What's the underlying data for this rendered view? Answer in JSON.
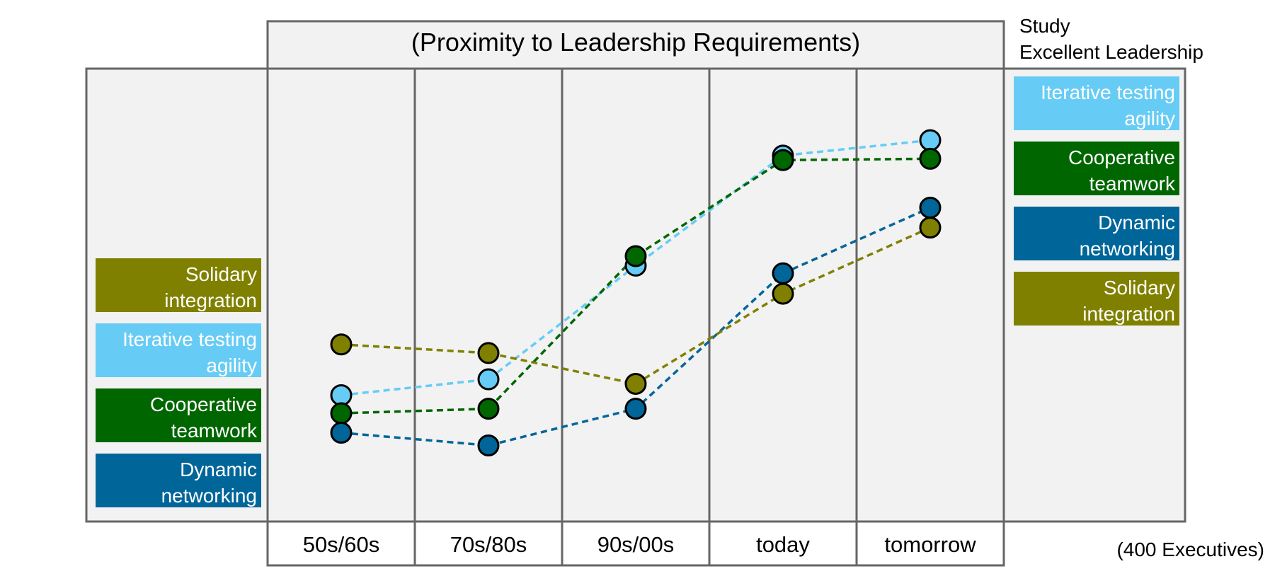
{
  "chart_data": {
    "type": "line",
    "title": "(Proximity to Leadership Requirements)",
    "study_label": [
      "Study",
      "Excellent Leadership"
    ],
    "footnote": "(400 Executives)",
    "categories": [
      "50s/60s",
      "70s/80s",
      "90s/00s",
      "today",
      "tomorrow"
    ],
    "y_scale": "relative position (0 = low, 100 = high); no y-axis printed",
    "ylim": [
      0,
      100
    ],
    "grid": "vertical separators between categories",
    "series": [
      {
        "name": "Iterative testing agility",
        "label_lines": [
          "Iterative testing",
          "agility"
        ],
        "color": "#66ccf5",
        "values": [
          27.9,
          31.4,
          56.5,
          80.8,
          84.2
        ],
        "start_rank": 2,
        "end_rank": 1
      },
      {
        "name": "Cooperative teamwork",
        "label_lines": [
          "Cooperative",
          "teamwork"
        ],
        "color": "#006600",
        "values": [
          23.9,
          24.9,
          58.6,
          79.8,
          80.1
        ],
        "start_rank": 3,
        "end_rank": 2
      },
      {
        "name": "Dynamic networking",
        "label_lines": [
          "Dynamic",
          "networking"
        ],
        "color": "#006699",
        "values": [
          19.6,
          16.8,
          24.9,
          54.8,
          69.3
        ],
        "start_rank": 4,
        "end_rank": 3
      },
      {
        "name": "Solidary integration",
        "label_lines": [
          "Solidary",
          "integration"
        ],
        "color": "#808000",
        "values": [
          39.1,
          37.2,
          30.4,
          50.3,
          64.9
        ],
        "start_rank": 1,
        "end_rank": 4
      }
    ]
  }
}
